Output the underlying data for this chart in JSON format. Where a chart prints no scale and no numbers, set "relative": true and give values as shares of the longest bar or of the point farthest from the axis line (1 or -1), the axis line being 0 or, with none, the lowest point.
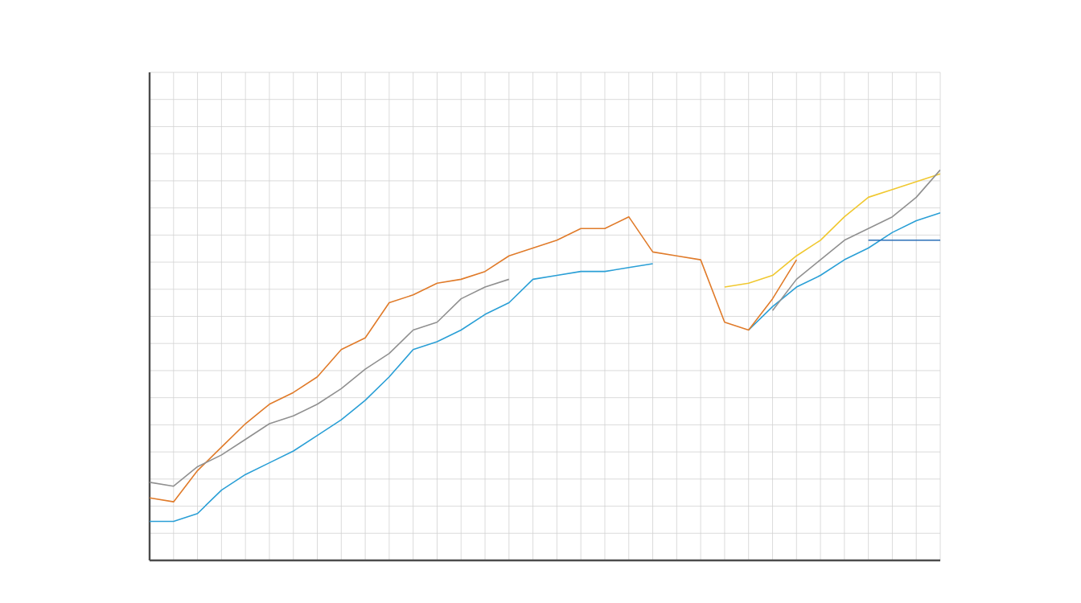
{
  "chart_data": {
    "type": "line",
    "relative": true,
    "grid": true,
    "marker": "none",
    "line_style": "solid",
    "categories": [
      null,
      null,
      null,
      null,
      null,
      null,
      null,
      null,
      null,
      null,
      null,
      null,
      null,
      null,
      null,
      null,
      null,
      null,
      null,
      null,
      null,
      null,
      null,
      null,
      null,
      null,
      null,
      null,
      null,
      null,
      null,
      null,
      null,
      null
    ],
    "series": [
      {
        "color": "#2a9fd6",
        "values": [
          0.1,
          0.1,
          0.12,
          0.18,
          0.22,
          0.25,
          0.28,
          0.32,
          0.36,
          0.41,
          0.47,
          0.54,
          0.56,
          0.59,
          0.63,
          0.66,
          0.72,
          0.73,
          0.74,
          0.74,
          0.75,
          0.76,
          null,
          null,
          null,
          0.59,
          0.65,
          0.7,
          0.73,
          0.77,
          0.8,
          0.84,
          0.87,
          0.89
        ]
      },
      {
        "color": "#e07b2a",
        "values": [
          0.16,
          0.15,
          0.23,
          0.29,
          0.35,
          0.4,
          0.43,
          0.47,
          0.54,
          0.57,
          0.66,
          0.68,
          0.71,
          0.72,
          0.74,
          0.78,
          0.8,
          0.82,
          0.85,
          0.85,
          0.88,
          0.79,
          0.78,
          0.77,
          0.61,
          0.59,
          0.67,
          0.77,
          null,
          null,
          null,
          null,
          null,
          null
        ]
      },
      {
        "color": "#f0c830",
        "values": [
          null,
          null,
          null,
          null,
          null,
          null,
          null,
          null,
          null,
          null,
          null,
          null,
          null,
          null,
          null,
          null,
          null,
          null,
          null,
          null,
          null,
          null,
          null,
          null,
          0.7,
          0.71,
          0.73,
          0.78,
          0.82,
          0.88,
          0.93,
          0.95,
          0.97,
          0.99
        ]
      },
      {
        "color": "#909090",
        "values": [
          0.2,
          0.19,
          0.24,
          0.27,
          0.31,
          0.35,
          0.37,
          0.4,
          0.44,
          0.49,
          0.53,
          0.59,
          0.61,
          0.67,
          0.7,
          0.72,
          null,
          null,
          null,
          null,
          null,
          null,
          null,
          null,
          null,
          null,
          0.64,
          0.72,
          0.77,
          0.82,
          0.85,
          0.88,
          0.93,
          1.0
        ]
      },
      {
        "color": "#2a6fb8",
        "values": [
          null,
          null,
          null,
          null,
          null,
          null,
          null,
          null,
          null,
          null,
          null,
          null,
          null,
          null,
          null,
          null,
          null,
          null,
          null,
          null,
          null,
          null,
          null,
          null,
          null,
          null,
          null,
          null,
          null,
          null,
          0.82,
          0.82,
          0.82,
          0.82
        ]
      }
    ]
  }
}
